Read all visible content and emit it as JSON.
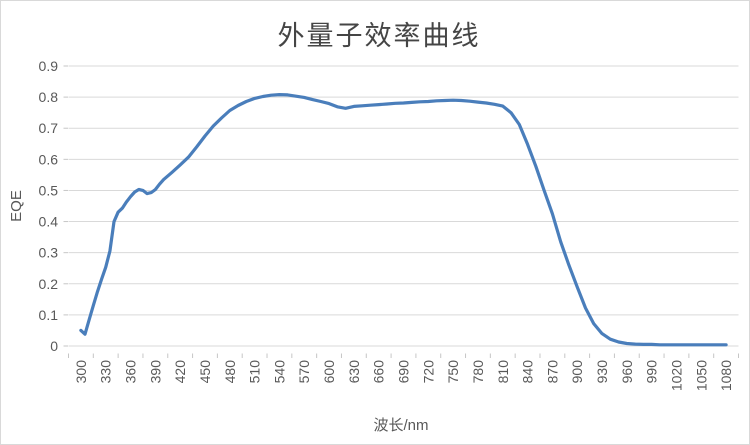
{
  "chart": {
    "colors": {
      "line": "#4A7EBB",
      "gridline": "#D9D9D9",
      "tick_mark": "#C6C6C6",
      "axis_text": "#595959",
      "title_text": "#454545",
      "border": "#D9D9D9",
      "background": "#FFFFFF"
    }
  },
  "chart_data": {
    "type": "line",
    "title": "外量子效率曲线",
    "xlabel": "波长/nm",
    "ylabel": "EQE",
    "legend": "none",
    "grid": "horizontal",
    "xlim": [
      300,
      1080
    ],
    "ylim": [
      0,
      0.9
    ],
    "x_tick_step": 30,
    "x_ticks": [
      "300",
      "330",
      "360",
      "390",
      "420",
      "450",
      "480",
      "510",
      "540",
      "570",
      "600",
      "630",
      "660",
      "690",
      "720",
      "750",
      "780",
      "810",
      "840",
      "870",
      "900",
      "930",
      "960",
      "990",
      "1020",
      "1050",
      "1080"
    ],
    "y_ticks": [
      "0",
      "0.1",
      "0.2",
      "0.3",
      "0.4",
      "0.5",
      "0.6",
      "0.7",
      "0.8",
      "0.9"
    ],
    "series": [
      {
        "name": "EQE",
        "points": [
          [
            300,
            0.05
          ],
          [
            305,
            0.038
          ],
          [
            310,
            0.085
          ],
          [
            315,
            0.13
          ],
          [
            320,
            0.175
          ],
          [
            325,
            0.215
          ],
          [
            330,
            0.253
          ],
          [
            335,
            0.305
          ],
          [
            340,
            0.4
          ],
          [
            345,
            0.43
          ],
          [
            350,
            0.443
          ],
          [
            355,
            0.463
          ],
          [
            360,
            0.48
          ],
          [
            365,
            0.495
          ],
          [
            370,
            0.503
          ],
          [
            375,
            0.5
          ],
          [
            380,
            0.49
          ],
          [
            385,
            0.493
          ],
          [
            390,
            0.503
          ],
          [
            395,
            0.52
          ],
          [
            400,
            0.535
          ],
          [
            410,
            0.558
          ],
          [
            420,
            0.582
          ],
          [
            430,
            0.607
          ],
          [
            440,
            0.64
          ],
          [
            450,
            0.675
          ],
          [
            460,
            0.707
          ],
          [
            470,
            0.733
          ],
          [
            480,
            0.757
          ],
          [
            490,
            0.773
          ],
          [
            500,
            0.786
          ],
          [
            510,
            0.796
          ],
          [
            520,
            0.802
          ],
          [
            530,
            0.806
          ],
          [
            540,
            0.808
          ],
          [
            550,
            0.807
          ],
          [
            560,
            0.803
          ],
          [
            570,
            0.799
          ],
          [
            580,
            0.792
          ],
          [
            590,
            0.786
          ],
          [
            600,
            0.779
          ],
          [
            610,
            0.769
          ],
          [
            620,
            0.764
          ],
          [
            630,
            0.77
          ],
          [
            640,
            0.772
          ],
          [
            650,
            0.774
          ],
          [
            660,
            0.776
          ],
          [
            670,
            0.778
          ],
          [
            680,
            0.78
          ],
          [
            690,
            0.781
          ],
          [
            700,
            0.783
          ],
          [
            710,
            0.785
          ],
          [
            720,
            0.786
          ],
          [
            730,
            0.788
          ],
          [
            740,
            0.789
          ],
          [
            750,
            0.79
          ],
          [
            760,
            0.789
          ],
          [
            770,
            0.787
          ],
          [
            780,
            0.784
          ],
          [
            790,
            0.781
          ],
          [
            800,
            0.777
          ],
          [
            810,
            0.771
          ],
          [
            820,
            0.75
          ],
          [
            830,
            0.712
          ],
          [
            840,
            0.648
          ],
          [
            850,
            0.578
          ],
          [
            860,
            0.5
          ],
          [
            870,
            0.425
          ],
          [
            880,
            0.335
          ],
          [
            890,
            0.26
          ],
          [
            900,
            0.19
          ],
          [
            910,
            0.122
          ],
          [
            920,
            0.072
          ],
          [
            930,
            0.04
          ],
          [
            940,
            0.022
          ],
          [
            950,
            0.013
          ],
          [
            960,
            0.008
          ],
          [
            970,
            0.006
          ],
          [
            980,
            0.005
          ],
          [
            990,
            0.005
          ],
          [
            1000,
            0.004
          ],
          [
            1010,
            0.004
          ],
          [
            1020,
            0.004
          ],
          [
            1030,
            0.004
          ],
          [
            1040,
            0.004
          ],
          [
            1050,
            0.004
          ],
          [
            1060,
            0.004
          ],
          [
            1070,
            0.004
          ],
          [
            1080,
            0.004
          ]
        ]
      }
    ]
  }
}
